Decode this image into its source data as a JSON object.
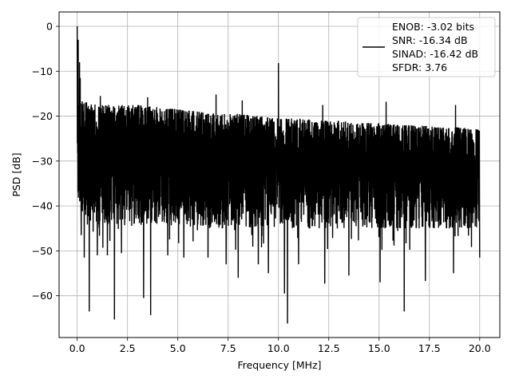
{
  "chart_data": {
    "type": "line",
    "title": "",
    "xlabel": "Frequency [MHz]",
    "ylabel": "PSD [dB]",
    "xlim": [
      -0.9,
      21.0
    ],
    "ylim": [
      -69.3,
      3.2
    ],
    "xticks": [
      0.0,
      2.5,
      5.0,
      7.5,
      10.0,
      12.5,
      15.0,
      17.5,
      20.0
    ],
    "xtick_labels": [
      "0.0",
      "2.5",
      "5.0",
      "7.5",
      "10.0",
      "12.5",
      "15.0",
      "17.5",
      "20.0"
    ],
    "yticks": [
      0,
      -10,
      -20,
      -30,
      -40,
      -50,
      -60
    ],
    "ytick_labels": [
      "0",
      "−10",
      "−20",
      "−30",
      "−40",
      "−50",
      "−60"
    ],
    "grid": true,
    "legend_position": "top-right",
    "legend_lines": [
      "ENOB: -3.02 bits",
      "SNR: -16.34 dB",
      "SINAD: -16.42 dB",
      "SFDR: 3.76"
    ],
    "line_color": "#000000",
    "noise_floor": {
      "x": [
        0.1,
        0.5,
        1,
        2,
        3,
        4,
        5,
        6,
        7,
        8,
        9,
        10,
        11,
        12,
        13,
        14,
        15,
        16,
        17,
        18,
        19,
        20
      ],
      "upper": [
        -16,
        -17,
        -17.5,
        -17.5,
        -17.5,
        -18,
        -18.5,
        -19,
        -19.5,
        -19.5,
        -20,
        -20.5,
        -20.5,
        -21,
        -21,
        -21.5,
        -21.5,
        -22,
        -22,
        -22.5,
        -22.5,
        -23
      ],
      "lower": [
        -40,
        -43,
        -44,
        -44,
        -44,
        -44,
        -44,
        -45,
        -45,
        -45,
        -45,
        -45,
        -45,
        -45,
        -45,
        -45,
        -45,
        -45,
        -45,
        -45,
        -45,
        -45
      ]
    },
    "peaks": [
      {
        "x": 0.0,
        "y": 0
      },
      {
        "x": 0.05,
        "y": -3
      },
      {
        "x": 0.12,
        "y": -8
      },
      {
        "x": 0.15,
        "y": -11.5
      },
      {
        "x": 10.0,
        "y": -8.2
      },
      {
        "x": 6.9,
        "y": -15.2
      },
      {
        "x": 1.15,
        "y": -15.5
      },
      {
        "x": 3.5,
        "y": -15.8
      },
      {
        "x": 8.2,
        "y": -16.5
      },
      {
        "x": 15.35,
        "y": -16.8
      },
      {
        "x": 12.2,
        "y": -17.5
      },
      {
        "x": 18.8,
        "y": -17.5
      }
    ],
    "dips": [
      {
        "x": 0.2,
        "y": -46.5
      },
      {
        "x": 0.35,
        "y": -51.5
      },
      {
        "x": 0.6,
        "y": -63.5
      },
      {
        "x": 1.0,
        "y": -51
      },
      {
        "x": 1.5,
        "y": -51
      },
      {
        "x": 1.85,
        "y": -65.3
      },
      {
        "x": 2.2,
        "y": -50.5
      },
      {
        "x": 3.3,
        "y": -60.5
      },
      {
        "x": 3.65,
        "y": -64.3
      },
      {
        "x": 4.5,
        "y": -51
      },
      {
        "x": 5.3,
        "y": -51.5
      },
      {
        "x": 6.5,
        "y": -51.5
      },
      {
        "x": 7.4,
        "y": -53
      },
      {
        "x": 8.0,
        "y": -56
      },
      {
        "x": 9.0,
        "y": -53
      },
      {
        "x": 9.5,
        "y": -55
      },
      {
        "x": 10.45,
        "y": -66.2
      },
      {
        "x": 10.3,
        "y": -59.5
      },
      {
        "x": 11.0,
        "y": -53
      },
      {
        "x": 12.3,
        "y": -57.3
      },
      {
        "x": 13.5,
        "y": -55.5
      },
      {
        "x": 15.05,
        "y": -57
      },
      {
        "x": 16.25,
        "y": -63.5
      },
      {
        "x": 17.3,
        "y": -56.7
      },
      {
        "x": 18.7,
        "y": -55
      },
      {
        "x": 20.0,
        "y": -51.5
      }
    ]
  }
}
